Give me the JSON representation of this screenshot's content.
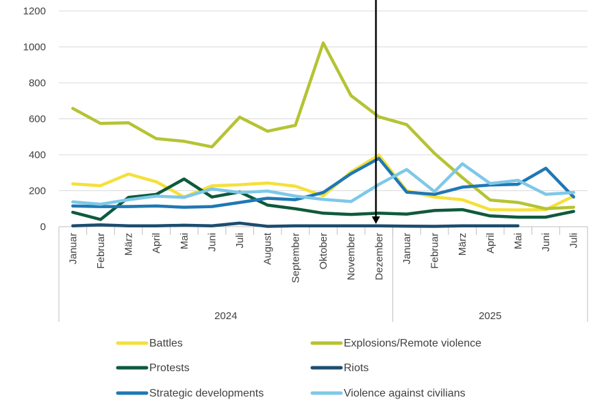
{
  "chart_data": {
    "type": "line",
    "categories": [
      "Januar",
      "Februar",
      "März",
      "April",
      "Mai",
      "Juni",
      "Juli",
      "August",
      "September",
      "Oktober",
      "November",
      "Dezember",
      "Januar",
      "Februar",
      "März",
      "April",
      "Mai",
      "Juni",
      "Juli"
    ],
    "year_groups": [
      {
        "label": "2024",
        "count": 12
      },
      {
        "label": "2025",
        "count": 7
      }
    ],
    "y_ticks": [
      "0",
      "200",
      "400",
      "600",
      "800",
      "1000",
      "1200"
    ],
    "ylim": [
      0,
      1200
    ],
    "grid": true,
    "legend_position": "bottom",
    "series": [
      {
        "name": "Battles",
        "color": "#f5e03b",
        "values": [
          238,
          228,
          293,
          250,
          165,
          227,
          233,
          243,
          225,
          172,
          305,
          398,
          200,
          165,
          150,
          95,
          93,
          95,
          170
        ]
      },
      {
        "name": "Explosions/Remote violence",
        "color": "#b5c334",
        "values": [
          658,
          574,
          578,
          490,
          475,
          444,
          609,
          531,
          564,
          1022,
          729,
          611,
          568,
          408,
          273,
          148,
          135,
          100,
          108
        ]
      },
      {
        "name": "Protests",
        "color": "#0e5a3c",
        "values": [
          80,
          40,
          163,
          180,
          265,
          165,
          193,
          120,
          100,
          75,
          68,
          75,
          70,
          90,
          95,
          60,
          53,
          53,
          85
        ]
      },
      {
        "name": "Riots",
        "color": "#1d4c6e",
        "values": [
          5,
          10,
          5,
          5,
          8,
          5,
          20,
          2,
          5,
          5,
          5,
          5,
          3,
          2,
          5,
          5,
          5,
          null,
          null
        ]
      },
      {
        "name": "Strategic developments",
        "color": "#1f78b4",
        "values": [
          115,
          112,
          112,
          115,
          108,
          112,
          135,
          158,
          150,
          190,
          295,
          380,
          192,
          180,
          220,
          232,
          236,
          325,
          165
        ]
      },
      {
        "name": "Violence against civilians",
        "color": "#7ec8e8",
        "values": [
          138,
          125,
          150,
          170,
          163,
          210,
          190,
          198,
          170,
          152,
          140,
          235,
          318,
          195,
          350,
          240,
          258,
          180,
          190
        ]
      }
    ]
  }
}
